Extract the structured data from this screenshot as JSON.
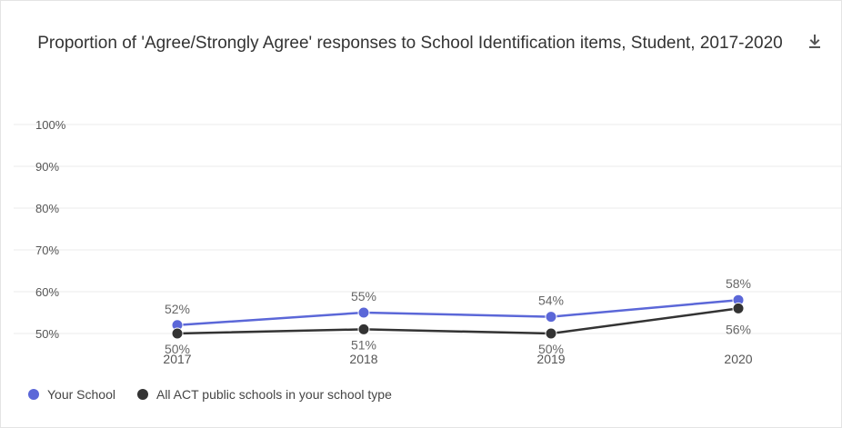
{
  "chart_data": {
    "type": "line",
    "title": "Proportion of 'Agree/Strongly Agree' responses to School Identification items, Student, 2017-2020",
    "categories": [
      "2017",
      "2018",
      "2019",
      "2020"
    ],
    "series": [
      {
        "name": "Your School",
        "values": [
          52,
          55,
          54,
          58
        ],
        "color": "#5b67d8"
      },
      {
        "name": "All ACT public schools in your school type",
        "values": [
          50,
          51,
          50,
          56
        ],
        "color": "#333333"
      }
    ],
    "y_ticks": [
      "100%",
      "90%",
      "80%",
      "70%",
      "60%",
      "50%"
    ],
    "y_tick_values": [
      100,
      90,
      80,
      70,
      60,
      50
    ],
    "ylim": [
      47,
      100
    ],
    "xlabel": "",
    "ylabel": "",
    "grid": true,
    "legend_position": "bottom-left",
    "value_suffix": "%"
  },
  "toolbar": {
    "download_icon": "download-icon"
  }
}
